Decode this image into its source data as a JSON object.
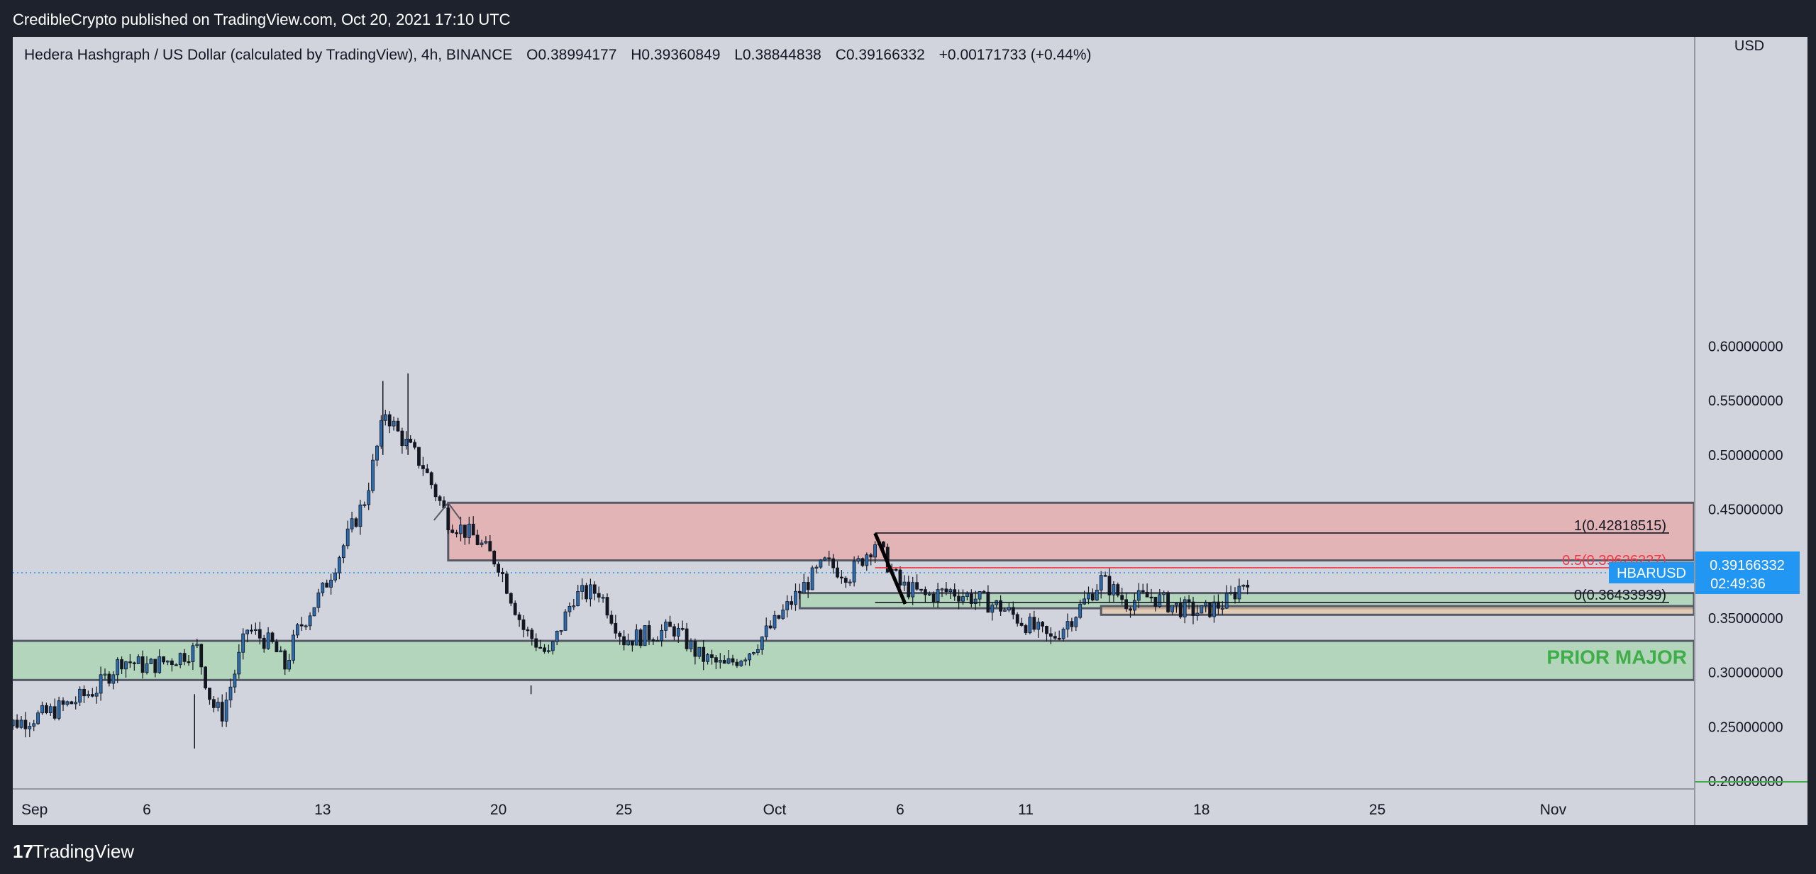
{
  "header": {
    "published": "CredibleCrypto published on TradingView.com, Oct 20, 2021 17:10 UTC"
  },
  "legend": {
    "title": "Hedera Hashgraph / US Dollar (calculated by TradingView), 4h, BINANCE",
    "open_label": "O",
    "open": "0.38994177",
    "high_label": "H",
    "high": "0.39360849",
    "low_label": "L",
    "low": "0.38844838",
    "close_label": "C",
    "close": "0.39166332",
    "change": "+0.00171733 (+0.44%)"
  },
  "price_axis": {
    "currency": "USD",
    "ticks": [
      "0.60000000",
      "0.55000000",
      "0.50000000",
      "0.45000000",
      "0.40000000",
      "0.35000000",
      "0.30000000",
      "0.25000000",
      "0.20000000"
    ]
  },
  "time_axis": {
    "ticks": [
      "Sep",
      "6",
      "13",
      "20",
      "25",
      "Oct",
      "6",
      "11",
      "18",
      "25",
      "Nov"
    ]
  },
  "current_price": {
    "symbol": "HBARUSD",
    "price": "0.39166332",
    "countdown": "02:49:36",
    "color": "#2196f3"
  },
  "annotations": {
    "fib_1": "1(0.42818515)",
    "fib_05": "0.5(0.39626227)",
    "fib_0": "0(0.36433939)",
    "zone_label": "PRIOR MAJOR"
  },
  "colors": {
    "background": "#d1d4dc",
    "frame": "#1e222d",
    "candle_up": "#2b6cb0",
    "candle_down": "#131722",
    "resistance_zone": "#e8a9a9",
    "support_zone": "#a8d5b0",
    "zone_label": "#3fae49",
    "fib_05": "#f23645"
  },
  "chart_data": {
    "type": "candlestick",
    "title": "Hedera Hashgraph / US Dollar (calculated by TradingView), 4h, BINANCE",
    "xlabel": "",
    "ylabel": "USD",
    "ylim": [
      0.19,
      0.62
    ],
    "xlim_days": [
      "Aug 31 2021",
      "Nov 6 2021"
    ],
    "interval": "4h",
    "price_path": [
      [
        "Aug 31",
        0.25
      ],
      [
        "Sep 1",
        0.255
      ],
      [
        "Sep 2",
        0.262
      ],
      [
        "Sep 3",
        0.272
      ],
      [
        "Sep 4",
        0.285
      ],
      [
        "Sep 5",
        0.312
      ],
      [
        "Sep 6",
        0.305
      ],
      [
        "Sep 7",
        0.312
      ],
      [
        "Sep 8",
        0.322
      ],
      [
        "Sep 8.6",
        0.27
      ],
      [
        "Sep 9",
        0.262
      ],
      [
        "Sep 9.5",
        0.3
      ],
      [
        "Sep 10",
        0.34
      ],
      [
        "Sep 11",
        0.325
      ],
      [
        "Sep 11.5",
        0.305
      ],
      [
        "Sep 12",
        0.338
      ],
      [
        "Sep 13",
        0.375
      ],
      [
        "Sep 14",
        0.425
      ],
      [
        "Sep 14.7",
        0.46
      ],
      [
        "Sep 15.5",
        0.54
      ],
      [
        "Sep 16",
        0.52
      ],
      [
        "Sep 17",
        0.49
      ],
      [
        "Sep 18",
        0.44
      ],
      [
        "Sep 19",
        0.425
      ],
      [
        "Sep 20",
        0.4
      ],
      [
        "Sep 21",
        0.34
      ],
      [
        "Sep 22",
        0.315
      ],
      [
        "Sep 23",
        0.37
      ],
      [
        "Sep 24",
        0.375
      ],
      [
        "Sep 25",
        0.33
      ],
      [
        "Sep 26",
        0.335
      ],
      [
        "Sep 27",
        0.34
      ],
      [
        "Sep 28",
        0.315
      ],
      [
        "Sep 29",
        0.305
      ],
      [
        "Sep 30",
        0.32
      ],
      [
        "Oct 1",
        0.345
      ],
      [
        "Oct 2",
        0.375
      ],
      [
        "Oct 3",
        0.4
      ],
      [
        "Oct 4",
        0.39
      ],
      [
        "Oct 5",
        0.42
      ],
      [
        "Oct 6",
        0.38
      ],
      [
        "Oct 7",
        0.37
      ],
      [
        "Oct 8",
        0.375
      ],
      [
        "Oct 9",
        0.368
      ],
      [
        "Oct 10",
        0.36
      ],
      [
        "Oct 11",
        0.345
      ],
      [
        "Oct 12",
        0.33
      ],
      [
        "Oct 13",
        0.355
      ],
      [
        "Oct 14",
        0.385
      ],
      [
        "Oct 15",
        0.365
      ],
      [
        "Oct 16",
        0.37
      ],
      [
        "Oct 17",
        0.36
      ],
      [
        "Oct 18",
        0.355
      ],
      [
        "Oct 19",
        0.365
      ],
      [
        "Oct 20",
        0.39166
      ]
    ],
    "zones": [
      {
        "name": "resistance",
        "from": 0.403,
        "to": 0.456,
        "start": "Sep 18",
        "color": "#e8a9a9"
      },
      {
        "name": "PRIOR MAJOR",
        "from": 0.293,
        "to": 0.329,
        "start": "Aug 31",
        "color": "#a8d5b0"
      },
      {
        "name": "support",
        "from": 0.359,
        "to": 0.373,
        "start": "Oct 2",
        "color": "#a8d5b0"
      },
      {
        "name": "support-2",
        "from": 0.353,
        "to": 0.361,
        "start": "Oct 14",
        "color": "#e6c8a8"
      }
    ],
    "fibonacci": [
      {
        "level": "1",
        "value": 0.42818515
      },
      {
        "level": "0.5",
        "value": 0.39626227
      },
      {
        "level": "0",
        "value": 0.36433939
      }
    ]
  }
}
